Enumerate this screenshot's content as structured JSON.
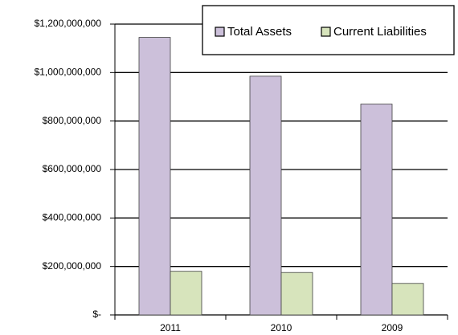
{
  "chart_data": {
    "type": "bar",
    "categories": [
      "2011",
      "2010",
      "2009"
    ],
    "series": [
      {
        "name": "Total Assets",
        "color": "#ccc0da",
        "values": [
          1145000000,
          985000000,
          870000000
        ]
      },
      {
        "name": "Current Liabilities",
        "color": "#d7e4bc",
        "values": [
          180000000,
          175000000,
          130000000
        ]
      }
    ],
    "ylim": [
      0,
      1200000000
    ],
    "yticks": [
      {
        "value": 0,
        "label": "$-"
      },
      {
        "value": 200000000,
        "label": "$200,000,000"
      },
      {
        "value": 400000000,
        "label": "$400,000,000"
      },
      {
        "value": 600000000,
        "label": "$600,000,000"
      },
      {
        "value": 800000000,
        "label": "$800,000,000"
      },
      {
        "value": 1000000000,
        "label": "$1,000,000,000"
      },
      {
        "value": 1200000000,
        "label": "$1,200,000,000"
      }
    ],
    "grid": true,
    "legend": "top-right"
  }
}
